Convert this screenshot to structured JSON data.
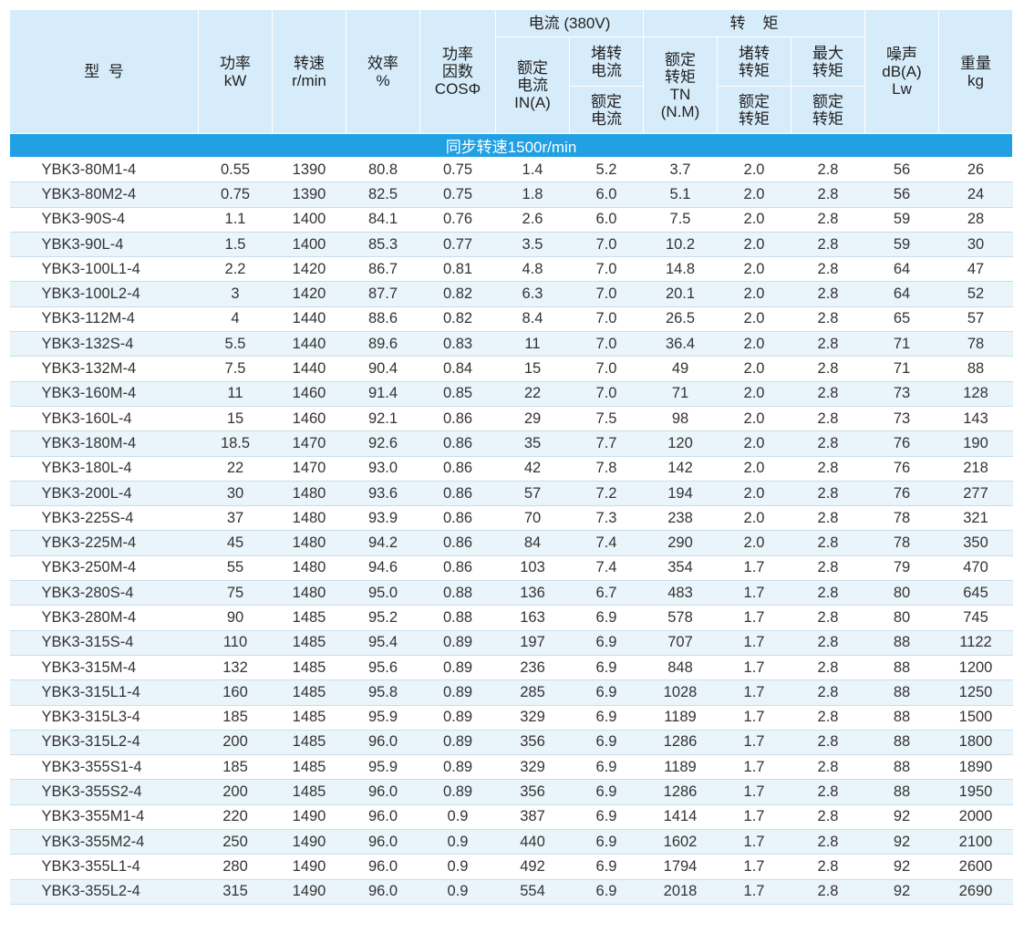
{
  "headers": {
    "model": "型  号",
    "power": [
      "功率",
      "kW"
    ],
    "speed": [
      "转速",
      "r/min"
    ],
    "efficiency": [
      "效率",
      "%"
    ],
    "power_factor": [
      "功率",
      "因数",
      "COSΦ"
    ],
    "current_group": "电流 (380V)",
    "rated_current": [
      "额定",
      "电流",
      "IN(A)"
    ],
    "locked_current": [
      "堵转",
      "电流"
    ],
    "locked_current_ratio": [
      "额定",
      "电流"
    ],
    "torque_group": "转    矩",
    "rated_torque": [
      "额定",
      "转矩",
      "TN",
      "(N.M)"
    ],
    "locked_torque": [
      "堵转",
      "转矩"
    ],
    "locked_torque_ratio": [
      "额定",
      "转矩"
    ],
    "max_torque": [
      "最大",
      "转矩"
    ],
    "max_torque_ratio": [
      "额定",
      "转矩"
    ],
    "noise": [
      "噪声",
      "dB(A)",
      "Lw"
    ],
    "weight": [
      "重量",
      "kg"
    ]
  },
  "section_title": "同步转速1500r/min",
  "rows": [
    [
      "YBK3-80M1-4",
      "0.55",
      "1390",
      "80.8",
      "0.75",
      "1.4",
      "5.2",
      "3.7",
      "2.0",
      "2.8",
      "56",
      "26"
    ],
    [
      "YBK3-80M2-4",
      "0.75",
      "1390",
      "82.5",
      "0.75",
      "1.8",
      "6.0",
      "5.1",
      "2.0",
      "2.8",
      "56",
      "24"
    ],
    [
      "YBK3-90S-4",
      "1.1",
      "1400",
      "84.1",
      "0.76",
      "2.6",
      "6.0",
      "7.5",
      "2.0",
      "2.8",
      "59",
      "28"
    ],
    [
      "YBK3-90L-4",
      "1.5",
      "1400",
      "85.3",
      "0.77",
      "3.5",
      "7.0",
      "10.2",
      "2.0",
      "2.8",
      "59",
      "30"
    ],
    [
      "YBK3-100L1-4",
      "2.2",
      "1420",
      "86.7",
      "0.81",
      "4.8",
      "7.0",
      "14.8",
      "2.0",
      "2.8",
      "64",
      "47"
    ],
    [
      "YBK3-100L2-4",
      "3",
      "1420",
      "87.7",
      "0.82",
      "6.3",
      "7.0",
      "20.1",
      "2.0",
      "2.8",
      "64",
      "52"
    ],
    [
      "YBK3-112M-4",
      "4",
      "1440",
      "88.6",
      "0.82",
      "8.4",
      "7.0",
      "26.5",
      "2.0",
      "2.8",
      "65",
      "57"
    ],
    [
      "YBK3-132S-4",
      "5.5",
      "1440",
      "89.6",
      "0.83",
      "11",
      "7.0",
      "36.4",
      "2.0",
      "2.8",
      "71",
      "78"
    ],
    [
      "YBK3-132M-4",
      "7.5",
      "1440",
      "90.4",
      "0.84",
      "15",
      "7.0",
      "49",
      "2.0",
      "2.8",
      "71",
      "88"
    ],
    [
      "YBK3-160M-4",
      "11",
      "1460",
      "91.4",
      "0.85",
      "22",
      "7.0",
      "71",
      "2.0",
      "2.8",
      "73",
      "128"
    ],
    [
      "YBK3-160L-4",
      "15",
      "1460",
      "92.1",
      "0.86",
      "29",
      "7.5",
      "98",
      "2.0",
      "2.8",
      "73",
      "143"
    ],
    [
      "YBK3-180M-4",
      "18.5",
      "1470",
      "92.6",
      "0.86",
      "35",
      "7.7",
      "120",
      "2.0",
      "2.8",
      "76",
      "190"
    ],
    [
      "YBK3-180L-4",
      "22",
      "1470",
      "93.0",
      "0.86",
      "42",
      "7.8",
      "142",
      "2.0",
      "2.8",
      "76",
      "218"
    ],
    [
      "YBK3-200L-4",
      "30",
      "1480",
      "93.6",
      "0.86",
      "57",
      "7.2",
      "194",
      "2.0",
      "2.8",
      "76",
      "277"
    ],
    [
      "YBK3-225S-4",
      "37",
      "1480",
      "93.9",
      "0.86",
      "70",
      "7.3",
      "238",
      "2.0",
      "2.8",
      "78",
      "321"
    ],
    [
      "YBK3-225M-4",
      "45",
      "1480",
      "94.2",
      "0.86",
      "84",
      "7.4",
      "290",
      "2.0",
      "2.8",
      "78",
      "350"
    ],
    [
      "YBK3-250M-4",
      "55",
      "1480",
      "94.6",
      "0.86",
      "103",
      "7.4",
      "354",
      "1.7",
      "2.8",
      "79",
      "470"
    ],
    [
      "YBK3-280S-4",
      "75",
      "1480",
      "95.0",
      "0.88",
      "136",
      "6.7",
      "483",
      "1.7",
      "2.8",
      "80",
      "645"
    ],
    [
      "YBK3-280M-4",
      "90",
      "1485",
      "95.2",
      "0.88",
      "163",
      "6.9",
      "578",
      "1.7",
      "2.8",
      "80",
      "745"
    ],
    [
      "YBK3-315S-4",
      "110",
      "1485",
      "95.4",
      "0.89",
      "197",
      "6.9",
      "707",
      "1.7",
      "2.8",
      "88",
      "1122"
    ],
    [
      "YBK3-315M-4",
      "132",
      "1485",
      "95.6",
      "0.89",
      "236",
      "6.9",
      "848",
      "1.7",
      "2.8",
      "88",
      "1200"
    ],
    [
      "YBK3-315L1-4",
      "160",
      "1485",
      "95.8",
      "0.89",
      "285",
      "6.9",
      "1028",
      "1.7",
      "2.8",
      "88",
      "1250"
    ],
    [
      "YBK3-315L3-4",
      "185",
      "1485",
      "95.9",
      "0.89",
      "329",
      "6.9",
      "1189",
      "1.7",
      "2.8",
      "88",
      "1500"
    ],
    [
      "YBK3-315L2-4",
      "200",
      "1485",
      "96.0",
      "0.89",
      "356",
      "6.9",
      "1286",
      "1.7",
      "2.8",
      "88",
      "1800"
    ],
    [
      "YBK3-355S1-4",
      "185",
      "1485",
      "95.9",
      "0.89",
      "329",
      "6.9",
      "1189",
      "1.7",
      "2.8",
      "88",
      "1890"
    ],
    [
      "YBK3-355S2-4",
      "200",
      "1485",
      "96.0",
      "0.89",
      "356",
      "6.9",
      "1286",
      "1.7",
      "2.8",
      "88",
      "1950"
    ],
    [
      "YBK3-355M1-4",
      "220",
      "1490",
      "96.0",
      "0.9",
      "387",
      "6.9",
      "1414",
      "1.7",
      "2.8",
      "92",
      "2000"
    ],
    [
      "YBK3-355M2-4",
      "250",
      "1490",
      "96.0",
      "0.9",
      "440",
      "6.9",
      "1602",
      "1.7",
      "2.8",
      "92",
      "2100"
    ],
    [
      "YBK3-355L1-4",
      "280",
      "1490",
      "96.0",
      "0.9",
      "492",
      "6.9",
      "1794",
      "1.7",
      "2.8",
      "92",
      "2600"
    ],
    [
      "YBK3-355L2-4",
      "315",
      "1490",
      "96.0",
      "0.9",
      "554",
      "6.9",
      "2018",
      "1.7",
      "2.8",
      "92",
      "2690"
    ]
  ]
}
